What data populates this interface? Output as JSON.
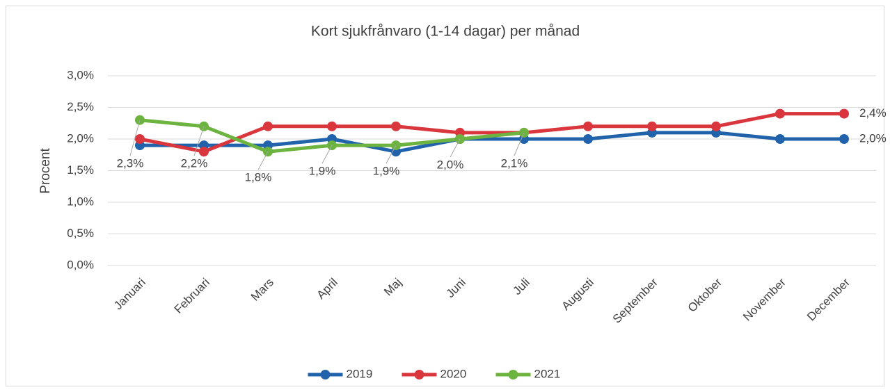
{
  "chart_data": {
    "type": "line",
    "title": "Kort sjukfrånvaro (1-14 dagar) per månad",
    "y_label": "Procent",
    "categories": [
      "Januari",
      "Februari",
      "Mars",
      "April",
      "Maj",
      "Juni",
      "Juli",
      "Augusti",
      "September",
      "Oktober",
      "November",
      "December"
    ],
    "series": [
      {
        "name": "2019",
        "color": "#2163ab",
        "values": [
          1.9,
          1.9,
          1.9,
          2.0,
          1.8,
          2.0,
          2.0,
          2.0,
          2.1,
          2.1,
          2.0,
          2.0
        ],
        "value_labels": [
          null,
          null,
          null,
          null,
          null,
          null,
          null,
          null,
          null,
          null,
          null,
          "2,0%"
        ]
      },
      {
        "name": "2020",
        "color": "#d9363e",
        "values": [
          2.0,
          1.8,
          2.2,
          2.2,
          2.2,
          2.1,
          2.1,
          2.2,
          2.2,
          2.2,
          2.4,
          2.4
        ],
        "value_labels": [
          null,
          null,
          null,
          null,
          null,
          null,
          null,
          null,
          null,
          null,
          null,
          "2,4%"
        ]
      },
      {
        "name": "2021",
        "color": "#6cb33f",
        "values": [
          2.3,
          2.2,
          1.8,
          1.9,
          1.9,
          2.0,
          2.1,
          null,
          null,
          null,
          null,
          null
        ],
        "value_labels": [
          "2,3%",
          "2,2%",
          "1,8%",
          "1,9%",
          "1,9%",
          "2,0%",
          "2,1%",
          null,
          null,
          null,
          null,
          null
        ]
      }
    ],
    "ylim": [
      0,
      3
    ],
    "yticks": [
      {
        "value": 0,
        "label": "0,0%"
      },
      {
        "value": 0.5,
        "label": "0,5%"
      },
      {
        "value": 1,
        "label": "1,0%"
      },
      {
        "value": 1.5,
        "label": "1,5%"
      },
      {
        "value": 2,
        "label": "2,0%"
      },
      {
        "value": 2.5,
        "label": "2,5%"
      },
      {
        "value": 3,
        "label": "3,0%"
      }
    ],
    "grid": true,
    "legend": "bottom"
  }
}
